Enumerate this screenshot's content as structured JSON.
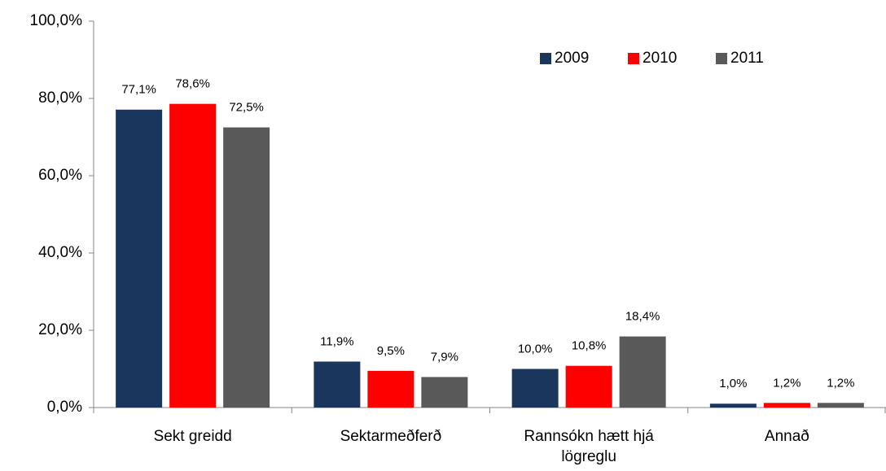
{
  "chart_data": {
    "type": "bar",
    "categories": [
      "Sekt greidd",
      "Sektarmeðferð",
      "Rannsókn hætt hjá lögreglu",
      "Annað"
    ],
    "series": [
      {
        "name": "2009",
        "color": "#1b365d",
        "values": [
          77.1,
          11.9,
          10.0,
          1.0
        ],
        "value_labels": [
          "77,1%",
          "11,9%",
          "10,0%",
          "1,0%"
        ]
      },
      {
        "name": "2010",
        "color": "#ff0000",
        "values": [
          78.6,
          9.5,
          10.8,
          1.2
        ],
        "value_labels": [
          "78,6%",
          "9,5%",
          "10,8%",
          "1,2%"
        ]
      },
      {
        "name": "2011",
        "color": "#595959",
        "values": [
          72.5,
          7.9,
          18.4,
          1.2
        ],
        "value_labels": [
          "72,5%",
          "7,9%",
          "18,4%",
          "1,2%"
        ]
      }
    ],
    "ylim": [
      0,
      100
    ],
    "yticks": [
      {
        "value": 0,
        "label": "0,0%"
      },
      {
        "value": 20,
        "label": "20,0%"
      },
      {
        "value": 40,
        "label": "40,0%"
      },
      {
        "value": 60,
        "label": "60,0%"
      },
      {
        "value": 80,
        "label": "80,0%"
      },
      {
        "value": 100,
        "label": "100,0%"
      }
    ],
    "grid": false,
    "legend": "top-right"
  }
}
